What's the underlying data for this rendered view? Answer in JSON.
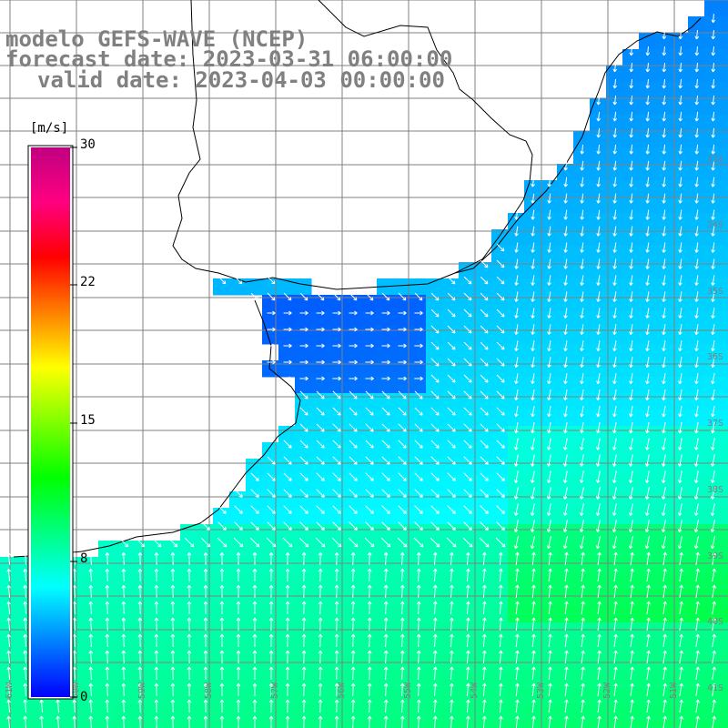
{
  "titles": {
    "model": "modelo GEFS-WAVE (NCEP)",
    "forecast": "forecast date: 2023-03-31 06:00:00",
    "valid": "valid date: 2023-04-03 00:00:00"
  },
  "colorbar": {
    "unit": "[m/s]",
    "ticks": [
      {
        "label": "30",
        "value": 30
      },
      {
        "label": "22",
        "value": 22
      },
      {
        "label": "15",
        "value": 15
      },
      {
        "label": "8",
        "value": 8
      },
      {
        "label": "0",
        "value": 0
      }
    ],
    "colors": [
      "#0000ff",
      "#0080ff",
      "#00ffff",
      "#00ff80",
      "#00ff00",
      "#80ff00",
      "#ffff00",
      "#ff8000",
      "#ff0000",
      "#ff0080",
      "#c00080"
    ]
  },
  "lat_labels": [
    "33S",
    "34S",
    "35S",
    "36S",
    "37S",
    "38S",
    "39S",
    "40S",
    "41S"
  ],
  "lon_labels": [
    "61W",
    "60W",
    "59W",
    "58W",
    "57W",
    "56W",
    "55W",
    "54W",
    "53W",
    "52W",
    "51W"
  ],
  "colors": {
    "title": "#808080",
    "grid": "#808080",
    "coast": "#000000",
    "land": "#ffffff",
    "arrow": "#ffffff"
  }
}
